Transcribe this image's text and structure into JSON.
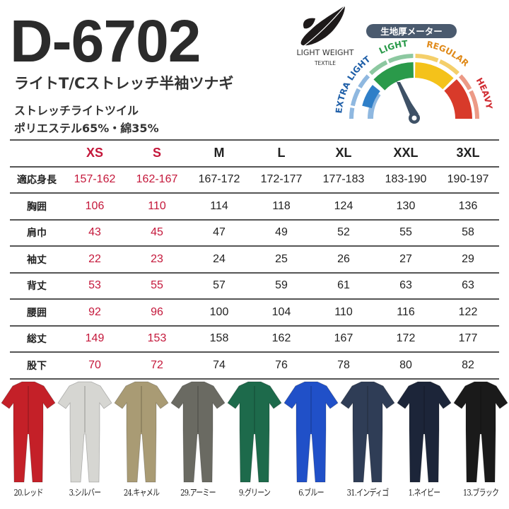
{
  "product": {
    "model": "D-6702",
    "subtitle": "ライトT/Cストレッチ半袖ツナギ",
    "fabric": "ストレッチライトツイル",
    "composition": "ポリエステル65%・綿35%"
  },
  "weight_badge": {
    "line1": "LIGHT WEIGHT",
    "line2": "TEXTILE",
    "icon": "feather-icon"
  },
  "thickness_meter": {
    "title": "生地厚メーター",
    "levels": [
      {
        "label": "EXTRA LIGHT",
        "color": "#2f7fc8"
      },
      {
        "label": "LIGHT",
        "color": "#2a9a4a"
      },
      {
        "label": "REGULAR",
        "color": "#e69a10"
      },
      {
        "label": "HEAVY",
        "color": "#d83a2a"
      }
    ],
    "indicated_level": "LIGHT"
  },
  "size_table": {
    "sizes": [
      "XS",
      "S",
      "M",
      "L",
      "XL",
      "XXL",
      "3XL"
    ],
    "highlight_color": "#c4173a",
    "rows": [
      {
        "label": "適応身長",
        "values": [
          "157-162",
          "162-167",
          "167-172",
          "172-177",
          "177-183",
          "183-190",
          "190-197"
        ]
      },
      {
        "label": "胸囲",
        "values": [
          "106",
          "110",
          "114",
          "118",
          "124",
          "130",
          "136"
        ]
      },
      {
        "label": "肩巾",
        "values": [
          "43",
          "45",
          "47",
          "49",
          "52",
          "55",
          "58"
        ]
      },
      {
        "label": "袖丈",
        "values": [
          "22",
          "23",
          "24",
          "25",
          "26",
          "27",
          "29"
        ]
      },
      {
        "label": "背丈",
        "values": [
          "53",
          "55",
          "57",
          "59",
          "61",
          "63",
          "63"
        ]
      },
      {
        "label": "腰囲",
        "values": [
          "92",
          "96",
          "100",
          "104",
          "110",
          "116",
          "122"
        ]
      },
      {
        "label": "総丈",
        "values": [
          "149",
          "153",
          "158",
          "162",
          "167",
          "172",
          "177"
        ]
      },
      {
        "label": "股下",
        "values": [
          "70",
          "72",
          "74",
          "76",
          "78",
          "80",
          "82"
        ]
      }
    ]
  },
  "colors": [
    {
      "label": "20.レッド",
      "hex": "#c42028"
    },
    {
      "label": "3.シルバー",
      "hex": "#d6d6d2"
    },
    {
      "label": "24.キャメル",
      "hex": "#a99b74"
    },
    {
      "label": "29.アーミー",
      "hex": "#6a6a62"
    },
    {
      "label": "9.グリーン",
      "hex": "#1d6a4b"
    },
    {
      "label": "6.ブルー",
      "hex": "#2050c8"
    },
    {
      "label": "31.インディゴ",
      "hex": "#2f3d56"
    },
    {
      "label": "1.ネイビー",
      "hex": "#1c2539"
    },
    {
      "label": "13.ブラック",
      "hex": "#1a1a1a"
    }
  ]
}
